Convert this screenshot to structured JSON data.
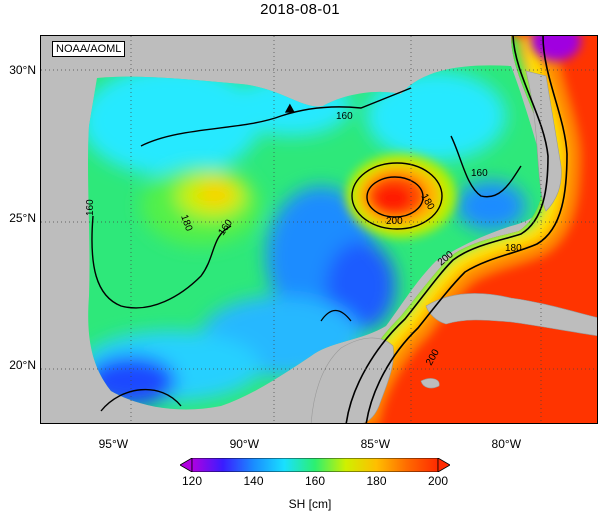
{
  "title": "2018-08-01",
  "source_label": "NOAA/AOML",
  "map": {
    "lon_range": [
      -97.8,
      -76.5
    ],
    "lat_range": [
      18.0,
      31.2
    ],
    "latitude_labels": [
      {
        "lat": 30,
        "text": "30°N"
      },
      {
        "lat": 25,
        "text": "25°N"
      },
      {
        "lat": 20,
        "text": "20°N"
      }
    ],
    "longitude_labels": [
      {
        "lon": -95,
        "text": "95°W"
      },
      {
        "lon": -90,
        "text": "90°W"
      },
      {
        "lon": -85,
        "text": "85°W"
      },
      {
        "lon": -80,
        "text": "80°W"
      }
    ],
    "gridlines": "dotted",
    "contour_labels": [
      "160",
      "160",
      "160",
      "160",
      "180",
      "180",
      "200",
      "180",
      "200",
      "200"
    ],
    "marker": {
      "shape": "triangle",
      "lon": -88.3,
      "lat": 28.7
    }
  },
  "colorbar": {
    "label": "SH [cm]",
    "ticks": [
      "120",
      "140",
      "160",
      "180",
      "200"
    ],
    "range": [
      120,
      200
    ],
    "stops": [
      "#b000e0",
      "#3a1cff",
      "#1a8cff",
      "#19e0ff",
      "#2cf070",
      "#cff000",
      "#ffbe00",
      "#ff6a00",
      "#ff2a00"
    ]
  }
}
